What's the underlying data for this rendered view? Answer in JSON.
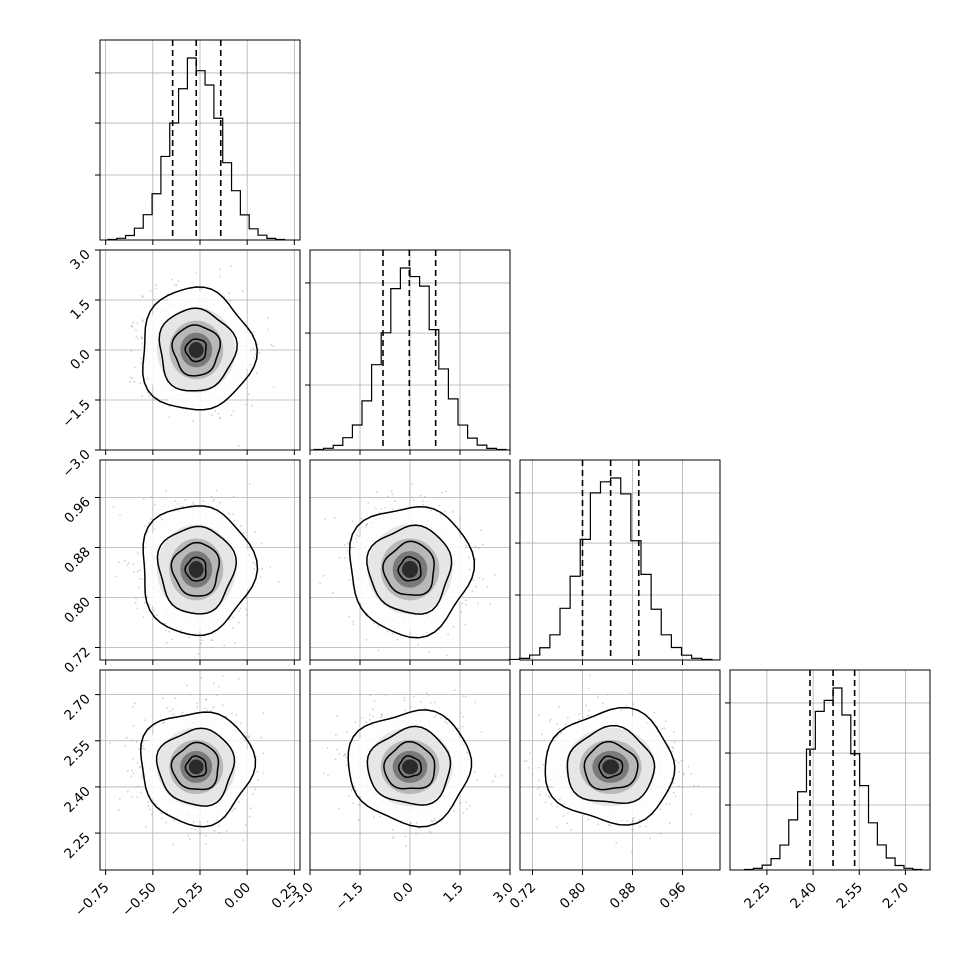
{
  "chart_data": {
    "type": "corner",
    "description_note": "",
    "parameters": [
      {
        "range": [
          -0.78,
          0.28
        ],
        "ticks": [
          -0.75,
          -0.5,
          -0.25,
          0.0,
          0.25
        ],
        "tick_labels": [
          "−0.75",
          "−0.50",
          "−0.25",
          "0.00",
          "0.25"
        ],
        "mean": -0.27,
        "sd": 0.13,
        "quantiles": [
          -0.395,
          -0.27,
          -0.14
        ]
      },
      {
        "range": [
          -3.0,
          3.0
        ],
        "ticks": [
          -3.0,
          -1.5,
          0.0,
          1.5,
          3.0
        ],
        "tick_labels": [
          "−3.0",
          "−1.5",
          "0.0",
          "1.5",
          "3.0"
        ],
        "mean": 0.0,
        "sd": 0.8,
        "quantiles": [
          -0.81,
          -0.02,
          0.77
        ]
      },
      {
        "range": [
          0.7,
          1.02
        ],
        "ticks": [
          0.72,
          0.8,
          0.88,
          0.96
        ],
        "tick_labels": [
          "0.72",
          "0.80",
          "0.88",
          "0.96"
        ],
        "mean": 0.845,
        "sd": 0.045,
        "quantiles": [
          0.8,
          0.845,
          0.89
        ]
      },
      {
        "range": [
          2.13,
          2.78
        ],
        "ticks": [
          2.25,
          2.4,
          2.55,
          2.7
        ],
        "tick_labels": [
          "2.25",
          "2.40",
          "2.55",
          "2.70"
        ],
        "mean": 2.465,
        "sd": 0.08,
        "quantiles": [
          2.39,
          2.465,
          2.535
        ]
      }
    ],
    "grid": true,
    "quantile_line_style": "dashed",
    "colors": {
      "line": "#000000",
      "grid": "#b0b0b0",
      "scatter": "#9a9a9a",
      "background": "#ffffff"
    }
  }
}
